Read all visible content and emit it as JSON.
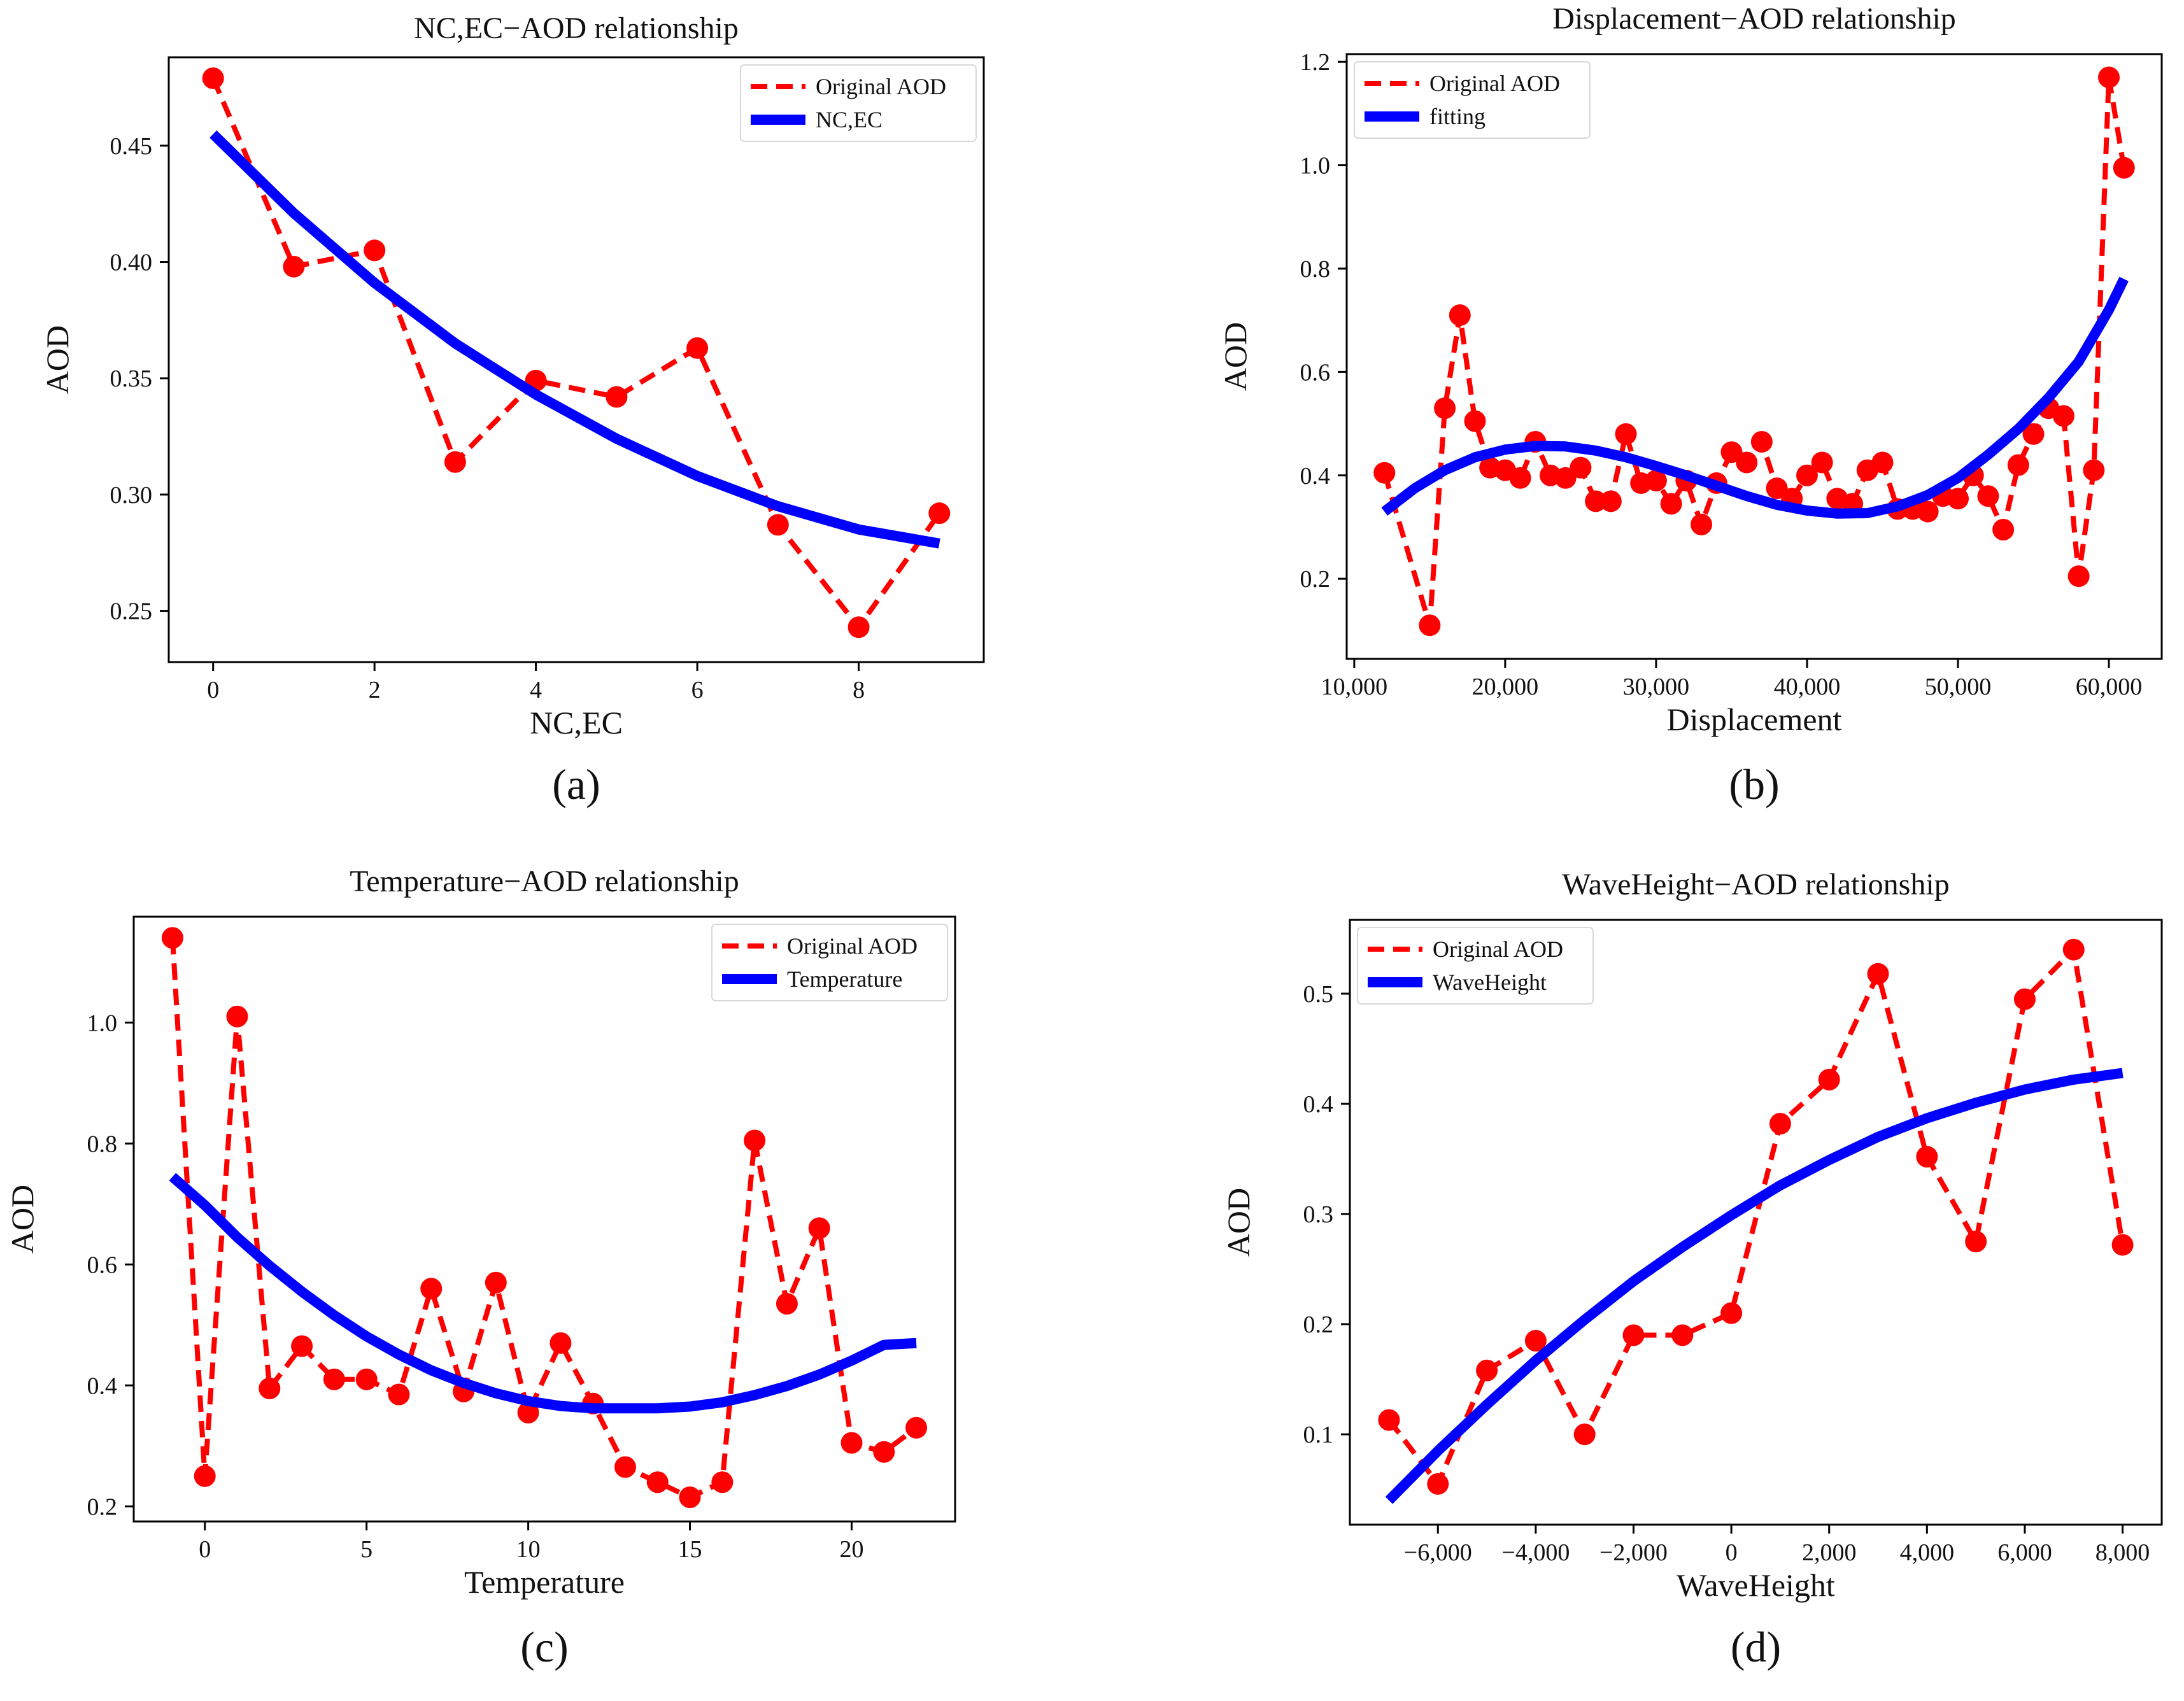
{
  "colors": {
    "original": "#ff0000",
    "fit": "#0000ff",
    "axis": "#000000"
  },
  "chart_data": [
    {
      "panel": "a",
      "panel_label": "(a)",
      "type": "line",
      "title": "NC,EC−AOD relationship",
      "xlabel": "NC,EC",
      "ylabel": "AOD",
      "xlim": [
        -0.55,
        9.55
      ],
      "ylim": [
        0.228,
        0.488
      ],
      "xticks": [
        0,
        2,
        4,
        6,
        8
      ],
      "xtick_labels": [
        "0",
        "2",
        "4",
        "6",
        "8"
      ],
      "yticks": [
        0.25,
        0.3,
        0.35,
        0.4,
        0.45
      ],
      "ytick_labels": [
        "0.25",
        "0.30",
        "0.35",
        "0.40",
        "0.45"
      ],
      "legend_position": "top-right",
      "series": [
        {
          "name": "Original AOD",
          "style": "dashed-markers",
          "x": [
            0,
            1,
            2,
            3,
            4,
            5,
            6,
            7,
            8,
            9
          ],
          "y": [
            0.479,
            0.398,
            0.405,
            0.314,
            0.349,
            0.342,
            0.363,
            0.287,
            0.243,
            0.292
          ]
        },
        {
          "name": "NC,EC",
          "style": "thick-solid",
          "x": [
            0,
            1,
            2,
            3,
            4,
            5,
            6,
            7,
            8,
            9
          ],
          "y": [
            0.455,
            0.421,
            0.391,
            0.365,
            0.343,
            0.324,
            0.308,
            0.295,
            0.285,
            0.279
          ]
        }
      ]
    },
    {
      "panel": "b",
      "panel_label": "(b)",
      "type": "line",
      "title": "Displacement−AOD relationship",
      "xlabel": "Displacement",
      "ylabel": "AOD",
      "xlim": [
        9500,
        63500
      ],
      "ylim": [
        0.045,
        1.215
      ],
      "xticks": [
        10000,
        20000,
        30000,
        40000,
        50000,
        60000
      ],
      "xtick_labels": [
        "10,000",
        "20,000",
        "30,000",
        "40,000",
        "50,000",
        "60,000"
      ],
      "yticks": [
        0.2,
        0.4,
        0.6,
        0.8,
        1.0,
        1.2
      ],
      "ytick_labels": [
        "0.2",
        "0.4",
        "0.6",
        "0.8",
        "1.0",
        "1.2"
      ],
      "legend_position": "top-left",
      "series": [
        {
          "name": "Original AOD",
          "style": "dashed-markers",
          "x": [
            12000,
            15000,
            16000,
            17000,
            18000,
            19000,
            20000,
            21000,
            22000,
            23000,
            24000,
            25000,
            26000,
            27000,
            28000,
            29000,
            30000,
            31000,
            32000,
            33000,
            34000,
            35000,
            36000,
            37000,
            38000,
            39000,
            40000,
            41000,
            42000,
            43000,
            44000,
            45000,
            46000,
            47000,
            48000,
            49000,
            50000,
            51000,
            52000,
            53000,
            54000,
            55000,
            56000,
            57000,
            58000,
            59000,
            60000,
            61000
          ],
          "y": [
            0.405,
            0.11,
            0.53,
            0.71,
            0.505,
            0.415,
            0.41,
            0.395,
            0.465,
            0.4,
            0.395,
            0.415,
            0.35,
            0.35,
            0.48,
            0.385,
            0.39,
            0.345,
            0.39,
            0.305,
            0.385,
            0.445,
            0.425,
            0.465,
            0.375,
            0.355,
            0.4,
            0.425,
            0.355,
            0.345,
            0.41,
            0.425,
            0.335,
            0.335,
            0.33,
            0.36,
            0.355,
            0.4,
            0.36,
            0.295,
            0.42,
            0.48,
            0.53,
            0.515,
            0.205,
            0.41,
            1.17,
            0.995
          ]
        },
        {
          "name": "fitting",
          "style": "thick-solid",
          "x": [
            12000,
            14000,
            16000,
            18000,
            20000,
            22000,
            24000,
            26000,
            28000,
            30000,
            32000,
            34000,
            36000,
            38000,
            40000,
            42000,
            44000,
            46000,
            48000,
            50000,
            52000,
            54000,
            56000,
            58000,
            60000,
            61000
          ],
          "y": [
            0.33,
            0.375,
            0.41,
            0.435,
            0.45,
            0.457,
            0.456,
            0.448,
            0.435,
            0.418,
            0.4,
            0.38,
            0.36,
            0.343,
            0.332,
            0.326,
            0.327,
            0.34,
            0.362,
            0.395,
            0.44,
            0.49,
            0.55,
            0.62,
            0.72,
            0.78
          ]
        }
      ]
    },
    {
      "panel": "c",
      "panel_label": "(c)",
      "type": "line",
      "title": "Temperature−AOD relationship",
      "xlabel": "Temperature",
      "ylabel": "AOD",
      "xlim": [
        -2.2,
        23.2
      ],
      "ylim": [
        0.175,
        1.175
      ],
      "xticks": [
        0,
        5,
        10,
        15,
        20
      ],
      "xtick_labels": [
        "0",
        "5",
        "10",
        "15",
        "20"
      ],
      "yticks": [
        0.2,
        0.4,
        0.6,
        0.8,
        1.0
      ],
      "ytick_labels": [
        "0.2",
        "0.4",
        "0.6",
        "0.8",
        "1.0"
      ],
      "legend_position": "top-right",
      "series": [
        {
          "name": "Original AOD",
          "style": "dashed-markers",
          "x": [
            -1,
            0,
            1,
            2,
            3,
            4,
            5,
            6,
            7,
            8,
            9,
            10,
            11,
            12,
            13,
            14,
            15,
            16,
            17,
            18,
            19,
            20,
            21,
            22
          ],
          "y": [
            1.14,
            0.25,
            1.01,
            0.395,
            0.465,
            0.41,
            0.41,
            0.385,
            0.56,
            0.39,
            0.57,
            0.355,
            0.47,
            0.37,
            0.265,
            0.24,
            0.215,
            0.24,
            0.805,
            0.535,
            0.66,
            0.305,
            0.29,
            0.33
          ]
        },
        {
          "name": "Temperature",
          "style": "thick-solid",
          "x": [
            -1,
            0,
            1,
            2,
            3,
            4,
            5,
            6,
            7,
            8,
            9,
            10,
            11,
            12,
            13,
            14,
            15,
            16,
            17,
            18,
            19,
            20,
            21,
            22
          ],
          "y": [
            0.745,
            0.698,
            0.645,
            0.598,
            0.555,
            0.516,
            0.481,
            0.451,
            0.425,
            0.404,
            0.387,
            0.374,
            0.366,
            0.362,
            0.362,
            0.362,
            0.365,
            0.372,
            0.384,
            0.399,
            0.418,
            0.441,
            0.467,
            0.47
          ]
        }
      ]
    },
    {
      "panel": "d",
      "panel_label": "(d)",
      "type": "line",
      "title": "WaveHeight−AOD relationship",
      "xlabel": "WaveHeight",
      "ylabel": "AOD",
      "xlim": [
        -7800,
        8800
      ],
      "ylim": [
        0.018,
        0.567
      ],
      "xticks": [
        -6000,
        -4000,
        -2000,
        0,
        2000,
        4000,
        6000,
        8000
      ],
      "xtick_labels": [
        "−6,000",
        "−4,000",
        "−2,000",
        "0",
        "2,000",
        "4,000",
        "6,000",
        "8,000"
      ],
      "yticks": [
        0.1,
        0.2,
        0.3,
        0.4,
        0.5
      ],
      "ytick_labels": [
        "0.1",
        "0.2",
        "0.3",
        "0.4",
        "0.5"
      ],
      "legend_position": "top-left",
      "series": [
        {
          "name": "Original AOD",
          "style": "dashed-markers",
          "x": [
            -7000,
            -6000,
            -5000,
            -4000,
            -3000,
            -2000,
            -1000,
            0,
            1000,
            2000,
            3000,
            4000,
            5000,
            6000,
            7000,
            8000
          ],
          "y": [
            0.113,
            0.055,
            0.158,
            0.185,
            0.1,
            0.19,
            0.19,
            0.21,
            0.382,
            0.422,
            0.518,
            0.352,
            0.275,
            0.495,
            0.54,
            0.272
          ]
        },
        {
          "name": "WaveHeight",
          "style": "thick-solid",
          "x": [
            -7000,
            -6000,
            -5000,
            -4000,
            -3000,
            -2000,
            -1000,
            0,
            1000,
            2000,
            3000,
            4000,
            5000,
            6000,
            7000,
            8000
          ],
          "y": [
            0.04,
            0.085,
            0.127,
            0.167,
            0.204,
            0.239,
            0.27,
            0.299,
            0.326,
            0.349,
            0.37,
            0.387,
            0.401,
            0.413,
            0.422,
            0.428
          ]
        }
      ]
    }
  ]
}
